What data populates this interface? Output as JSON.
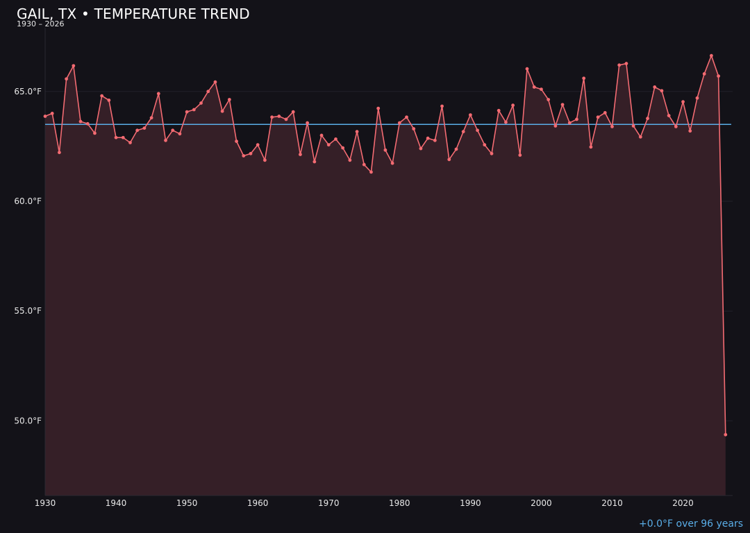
{
  "header": {
    "title": "GAIL, TX • TEMPERATURE TREND",
    "subtitle": "1930 – 2026"
  },
  "footer": {
    "trend_note": "+0.0°F over 96 years"
  },
  "colors": {
    "background": "#131218",
    "line": "#f36b72",
    "fill": "#351f27",
    "mean_line": "#5aaee8",
    "grid": "#23212a",
    "text": "#e8e8e8"
  },
  "chart_data": {
    "type": "area",
    "title": "GAIL, TX • TEMPERATURE TREND",
    "subtitle": "1930 – 2026",
    "xlabel": "",
    "ylabel": "",
    "xlim": [
      1930,
      2027
    ],
    "ylim": [
      46.6,
      67.9
    ],
    "grid": true,
    "y_ticks": [
      50,
      55,
      60,
      65
    ],
    "y_tick_labels": [
      "50.0°F",
      "55.0°F",
      "60.0°F",
      "65.0°F"
    ],
    "x_ticks": [
      1930,
      1940,
      1950,
      1960,
      1970,
      1980,
      1990,
      2000,
      2010,
      2020
    ],
    "x_tick_labels": [
      "1930",
      "1940",
      "1950",
      "1960",
      "1970",
      "1980",
      "1990",
      "2000",
      "2010",
      "2020"
    ],
    "mean": 63.5,
    "series": [
      {
        "x": [
          1930,
          1931,
          1932,
          1933,
          1934,
          1935,
          1936,
          1937,
          1938,
          1939,
          1940,
          1941,
          1942,
          1943,
          1944,
          1945,
          1946,
          1947,
          1948,
          1949,
          1950,
          1951,
          1952,
          1953,
          1954,
          1955,
          1956,
          1957,
          1958,
          1959,
          1960,
          1961,
          1962,
          1963,
          1964,
          1965,
          1966,
          1967,
          1968,
          1969,
          1970,
          1971,
          1972,
          1973,
          1974,
          1975,
          1976,
          1977,
          1978,
          1979,
          1980,
          1981,
          1982,
          1983,
          1984,
          1985,
          1986,
          1987,
          1988,
          1989,
          1990,
          1991,
          1992,
          1993,
          1994,
          1995,
          1996,
          1997,
          1998,
          1999,
          2000,
          2001,
          2002,
          2003,
          2004,
          2005,
          2006,
          2007,
          2008,
          2009,
          2010,
          2011,
          2012,
          2013,
          2014,
          2015,
          2016,
          2017,
          2018,
          2019,
          2020,
          2021,
          2022,
          2023,
          2024,
          2025,
          2026
        ],
        "y": [
          63.87,
          64.0,
          62.22,
          65.57,
          66.17,
          63.63,
          63.53,
          63.1,
          64.8,
          64.6,
          62.9,
          62.9,
          62.67,
          63.23,
          63.33,
          63.8,
          64.9,
          62.77,
          63.23,
          63.07,
          64.07,
          64.17,
          64.47,
          65.0,
          65.43,
          64.1,
          64.63,
          62.73,
          62.07,
          62.17,
          62.57,
          61.87,
          63.83,
          63.87,
          63.73,
          64.07,
          62.13,
          63.57,
          61.8,
          63.0,
          62.57,
          62.83,
          62.43,
          61.87,
          63.17,
          61.67,
          61.33,
          64.23,
          62.33,
          61.73,
          63.57,
          63.83,
          63.3,
          62.4,
          62.87,
          62.77,
          64.33,
          61.9,
          62.37,
          63.17,
          63.93,
          63.23,
          62.57,
          62.17,
          64.13,
          63.6,
          64.37,
          62.1,
          66.03,
          65.2,
          65.1,
          64.63,
          63.43,
          64.4,
          63.57,
          63.73,
          65.6,
          62.47,
          63.83,
          64.03,
          63.4,
          66.2,
          66.27,
          63.43,
          62.93,
          63.77,
          65.2,
          65.03,
          63.9,
          63.4,
          64.53,
          63.2,
          64.7,
          65.8,
          66.63,
          65.7,
          49.37
        ]
      }
    ]
  }
}
